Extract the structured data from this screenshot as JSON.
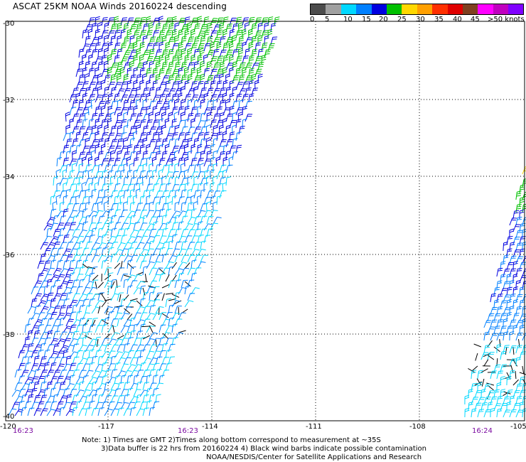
{
  "title": "ASCAT 25KM NOAA Winds 20160224 descending",
  "legend": {
    "colors": [
      "#4c4c4c",
      "#a0a0a0",
      "#00d8ff",
      "#0080ff",
      "#0000e0",
      "#00c000",
      "#ffd800",
      "#ffa000",
      "#ff3000",
      "#e00000",
      "#804020",
      "#ff00ff",
      "#c000c0",
      "#8000ff"
    ],
    "labels": [
      "0",
      "5",
      "10",
      "15",
      "20",
      "25",
      "30",
      "35",
      "40",
      "45",
      ">50 knots"
    ]
  },
  "axes": {
    "lon_labels": [
      "-120",
      "-117",
      "-114",
      "-111",
      "-108",
      "-105"
    ],
    "lat_labels": [
      "-30",
      "-32",
      "-34",
      "-36",
      "-38",
      "-40"
    ]
  },
  "times": [
    "16:23",
    "16:23",
    "16:24"
  ],
  "notes": {
    "line1": "Note: 1) Times are GMT 2)Times along bottom correspond to measurement at ~35S",
    "line2": "3)Data buffer is 22 hrs from 20160224 4) Black wind barbs indicate possible contamination",
    "line3": "NOAA/NESDIS/Center for Satellite Applications and Research"
  },
  "wind_colors": {
    "contaminated": "#000000",
    "calm": "#00d8ff",
    "light": "#0080ff",
    "moderate": "#0000e0",
    "strong": "#00c000",
    "gale": "#ffd800"
  }
}
